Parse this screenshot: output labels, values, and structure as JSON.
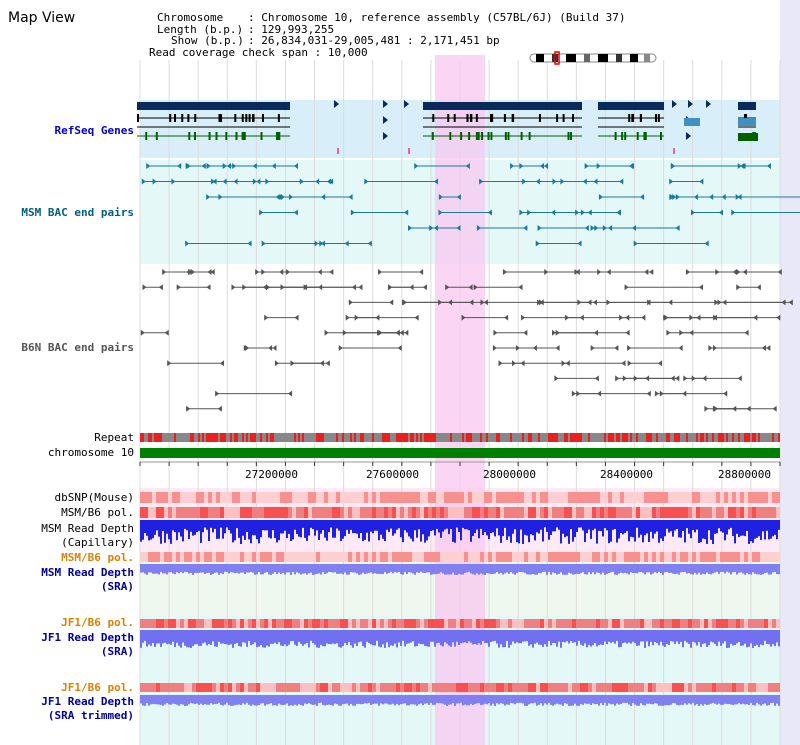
{
  "page": {
    "title": "Map View"
  },
  "info": {
    "chromosome_label": "Chromosome",
    "chromosome_value": "Chromosome 10, reference assembly (C57BL/6J) (Build 37)",
    "length_label": "Length (b.p.)",
    "length_value": "129,993,255",
    "show_label": "Show (b.p.)",
    "show_value": "26,834,031-29,005,481 : 2,171,451 bp",
    "coverage_label": "Read coverage check span",
    "coverage_value": "10,000"
  },
  "tracks": {
    "refseq": "RefSeq Genes",
    "msm_bac": "MSM BAC end pairs",
    "b6n_bac": "B6N BAC end pairs",
    "repeat": "Repeat",
    "chromosome": "chromosome 10",
    "dbsnp": "dbSNP(Mouse)",
    "msm_b6_pol_1": "MSM/B6 pol.",
    "msm_depth_cap_1": "MSM Read Depth",
    "msm_depth_cap_2": "(Capillary)",
    "msm_b6_pol_2": "MSM/B6 pol.",
    "msm_depth_sra_1": "MSM Read Depth",
    "msm_depth_sra_2": "(SRA)",
    "jf1_b6_pol_1": "JF1/B6 pol.",
    "jf1_depth_sra_1": "JF1 Read Depth",
    "jf1_depth_sra_2": "(SRA)",
    "jf1_b6_pol_2": "JF1/B6 pol.",
    "jf1_depth_trim_1": "JF1 Read Depth",
    "jf1_depth_trim_2": "(SRA trimmed)"
  },
  "axis": {
    "ticks": [
      "27200000",
      "27600000",
      "28000000",
      "28400000",
      "28800000"
    ]
  },
  "colors": {
    "refseq_label": "#0000cc",
    "msm_label": "#006080",
    "b6n_label": "#555555",
    "orange_label": "#e08000",
    "blue_label": "#000099",
    "highlight": "#f8c8f0",
    "chromosome_bar": "#008000"
  }
}
